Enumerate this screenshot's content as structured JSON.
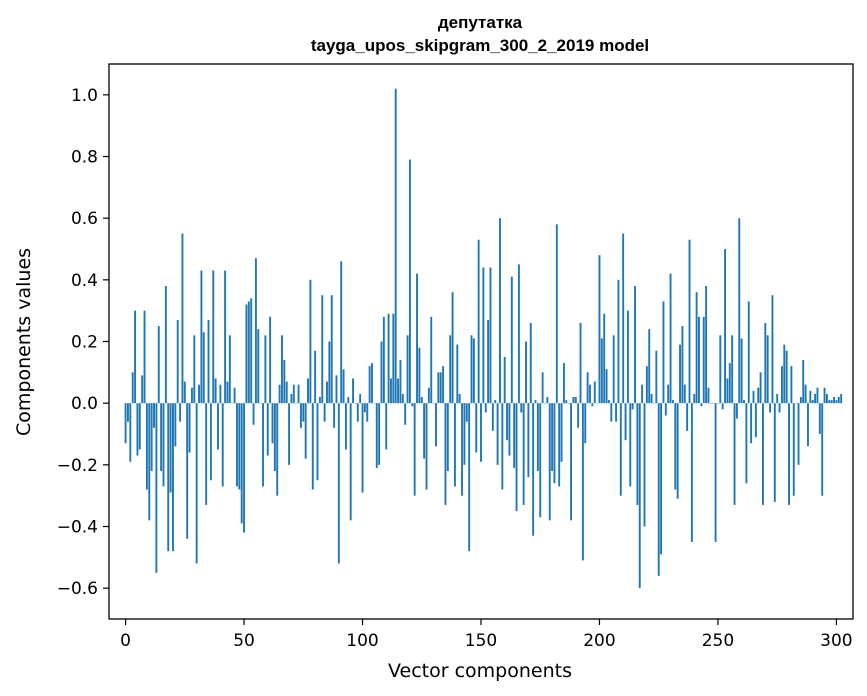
{
  "chart_data": {
    "type": "bar",
    "title_line1": "депутатка",
    "title_line2": "tayga_upos_skipgram_300_2_2019 model",
    "xlabel": "Vector components",
    "ylabel": "Components values",
    "xlim": [
      -7,
      307
    ],
    "ylim": [
      -0.7,
      1.1
    ],
    "x_ticks": [
      0,
      50,
      100,
      150,
      200,
      250,
      300
    ],
    "x_tick_labels": [
      "0",
      "50",
      "100",
      "150",
      "200",
      "250",
      "300"
    ],
    "y_ticks": [
      -0.6,
      -0.4,
      -0.2,
      0.0,
      0.2,
      0.4,
      0.6,
      0.8,
      1.0
    ],
    "y_tick_labels": [
      "−0.6",
      "−0.4",
      "−0.2",
      "0.0",
      "0.2",
      "0.4",
      "0.6",
      "0.8",
      "1.0"
    ],
    "bar_color": "#1f77b4",
    "grid": false,
    "values": [
      -0.13,
      -0.06,
      -0.19,
      0.1,
      0.3,
      -0.17,
      -0.15,
      0.09,
      0.3,
      -0.28,
      -0.38,
      -0.22,
      -0.08,
      -0.55,
      0.25,
      -0.22,
      -0.27,
      0.38,
      -0.48,
      -0.29,
      -0.48,
      -0.14,
      0.27,
      -0.06,
      0.55,
      0.07,
      -0.44,
      -0.16,
      0.05,
      0.22,
      -0.52,
      0.06,
      0.43,
      0.23,
      -0.33,
      0.27,
      -0.25,
      0.43,
      0.08,
      -0.15,
      0.06,
      -0.27,
      0.43,
      0.07,
      0.22,
      0.0,
      0.05,
      -0.27,
      -0.28,
      -0.39,
      -0.42,
      0.32,
      0.33,
      0.34,
      -0.07,
      0.47,
      0.24,
      0.0,
      -0.27,
      0.22,
      -0.17,
      0.28,
      -0.13,
      -0.22,
      -0.3,
      0.06,
      0.22,
      0.14,
      0.07,
      -0.2,
      0.03,
      0.06,
      0.0,
      0.06,
      -0.08,
      -0.06,
      -0.18,
      0.08,
      0.4,
      -0.28,
      0.17,
      -0.25,
      0.02,
      0.35,
      -0.06,
      0.07,
      0.2,
      0.35,
      -0.08,
      0.09,
      -0.52,
      0.46,
      0.11,
      -0.15,
      0.02,
      -0.38,
      0.08,
      0.0,
      -0.06,
      0.03,
      -0.29,
      -0.03,
      -0.06,
      0.12,
      0.13,
      0.0,
      -0.21,
      -0.2,
      0.2,
      0.28,
      -0.15,
      0.29,
      0.08,
      0.29,
      1.02,
      0.08,
      0.14,
      0.03,
      -0.07,
      0.22,
      0.79,
      -0.01,
      -0.3,
      0.42,
      0.18,
      0.02,
      -0.18,
      -0.28,
      0.05,
      0.28,
      0.0,
      -0.14,
      0.1,
      0.1,
      0.12,
      -0.33,
      -0.22,
      0.22,
      0.36,
      -0.27,
      0.19,
      0.03,
      -0.3,
      -0.2,
      -0.06,
      -0.48,
      0.22,
      0.21,
      -0.16,
      0.53,
      -0.19,
      0.44,
      -0.03,
      0.27,
      0.44,
      -0.09,
      0.01,
      -0.2,
      0.6,
      -0.28,
      0.15,
      -0.12,
      -0.17,
      0.41,
      -0.21,
      -0.35,
      0.45,
      -0.03,
      -0.33,
      0.2,
      -0.24,
      0.26,
      -0.43,
      0.01,
      -0.22,
      -0.37,
      0.1,
      0.0,
      0.02,
      -0.38,
      -0.22,
      -0.26,
      0.58,
      -0.27,
      -0.19,
      0.13,
      0.01,
      0.0,
      -0.38,
      0.02,
      0.02,
      -0.08,
      0.26,
      -0.51,
      -0.13,
      0.1,
      0.06,
      -0.01,
      0.07,
      0.0,
      0.48,
      0.21,
      0.29,
      0.11,
      0.01,
      -0.06,
      0.22,
      -0.06,
      0.4,
      -0.3,
      0.55,
      -0.12,
      0.3,
      -0.27,
      -0.02,
      0.38,
      -0.33,
      -0.6,
      0.06,
      -0.4,
      0.12,
      0.24,
      0.03,
      0.0,
      0.17,
      -0.56,
      -0.49,
      0.33,
      -0.04,
      0.06,
      0.42,
      0.01,
      -0.28,
      -0.31,
      0.19,
      0.25,
      0.06,
      -0.09,
      0.53,
      -0.45,
      0.03,
      0.36,
      0.28,
      -0.01,
      0.28,
      0.38,
      0.05,
      0.0,
      0.0,
      -0.45,
      0.0,
      0.22,
      -0.02,
      0.5,
      0.08,
      0.13,
      0.22,
      -0.33,
      -0.05,
      0.6,
      0.21,
      0.01,
      -0.26,
      0.33,
      -0.13,
      0.04,
      -0.11,
      0.05,
      0.1,
      -0.33,
      0.26,
      0.22,
      -0.03,
      0.35,
      -0.32,
      0.03,
      -0.03,
      0.12,
      0.19,
      0.17,
      -0.33,
      0.12,
      -0.3,
      0.0,
      -0.2,
      0.02,
      0.14,
      0.06,
      -0.14,
      0.04,
      0.01,
      0.03,
      0.05,
      -0.1,
      -0.3,
      0.05,
      0.03,
      0.01,
      0.01,
      0.02,
      0.01,
      0.02,
      0.03
    ]
  }
}
